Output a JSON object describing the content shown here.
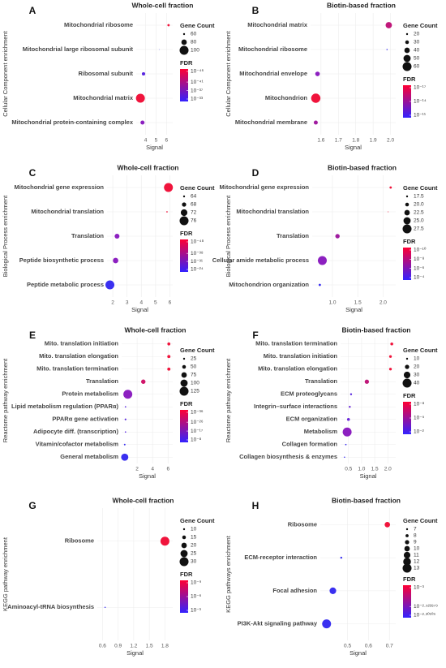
{
  "chart_data": [
    {
      "type": "scatter",
      "panel": "A",
      "title": "Whole-cell fraction",
      "ylabel": "Cellular Component enrichment",
      "xlabel": "Signal",
      "categories": [
        "Mitochondrial ribosome",
        "Mitochondrial large ribosomal subunit",
        "Ribosomal subunit",
        "Mitochondrial matrix",
        "Mitochondrial protein-containing complex"
      ],
      "values": [
        6.2,
        5.3,
        3.8,
        3.5,
        3.7
      ],
      "sizes": [
        62,
        52,
        68,
        100,
        72
      ],
      "colors": [
        "#f0143c",
        "#3a30f0",
        "#5a28e0",
        "#f0143c",
        "#8c20c0"
      ],
      "xlim": [
        3.1,
        6.6
      ],
      "xticks": [
        4,
        5,
        6
      ],
      "size_legend_title": "Gene Count",
      "size_legend": [
        60,
        80,
        100
      ],
      "color_legend_title": "FDR",
      "gradient": [
        "#ff0033",
        "#3322ff"
      ],
      "color_ticks": [
        {
          "value": 1e-46,
          "label": "10⁻⁴⁶"
        },
        {
          "value": 1e-41,
          "label": "10⁻⁴¹"
        },
        {
          "value": 1e-37,
          "label": "10⁻³⁷"
        },
        {
          "value": 1e-33,
          "label": "10⁻³³"
        }
      ]
    },
    {
      "type": "scatter",
      "panel": "B",
      "title": "Biotin-based fraction",
      "ylabel": "Cellular Component enrichment",
      "xlabel": "Signal",
      "categories": [
        "Mitochondrial matrix",
        "Mitochondrial ribosome",
        "Mitochondrial envelope",
        "Mitochondrion",
        "Mitochondrial membrane"
      ],
      "values": [
        1.99,
        1.98,
        1.58,
        1.57,
        1.57
      ],
      "sizes": [
        45,
        16,
        35,
        62,
        32
      ],
      "colors": [
        "#c0187a",
        "#3a30f0",
        "#8c20c0",
        "#f0143c",
        "#a01ca0"
      ],
      "xlim": [
        1.54,
        2.03
      ],
      "xticks": [
        1.6,
        1.7,
        1.8,
        1.9,
        {
          "value": 2,
          "label": "2.0"
        }
      ],
      "size_legend_title": "Gene Count",
      "size_legend": [
        20,
        30,
        40,
        50,
        60
      ],
      "color_legend_title": "FDR",
      "gradient": [
        "#ff0033",
        "#3322ff"
      ],
      "color_ticks": [
        {
          "value": 1e-17,
          "label": "10⁻¹⁷"
        },
        {
          "value": 1e-14,
          "label": "10⁻¹⁴"
        },
        {
          "value": 1e-11,
          "label": "10⁻¹¹"
        }
      ]
    },
    {
      "type": "scatter",
      "panel": "C",
      "title": "Whole-cell fraction",
      "ylabel": "Biological Process enrichment",
      "xlabel": "Signal",
      "categories": [
        "Mitochondrial gene expression",
        "Mitochondrial translation",
        "Translation",
        "Peptide biosynthetic process",
        "Peptide metabolic process"
      ],
      "values": [
        5.9,
        5.8,
        2.3,
        2.2,
        1.8
      ],
      "sizes": [
        76,
        63,
        69,
        70,
        76
      ],
      "colors": [
        "#f0143c",
        "#f0143c",
        "#8c20c0",
        "#8c20c0",
        "#3a30f0"
      ],
      "xlim": [
        1.6,
        6.2
      ],
      "xticks": [
        2,
        3,
        4,
        5,
        6
      ],
      "size_legend_title": "Gene Count",
      "size_legend": [
        64,
        68,
        72,
        76
      ],
      "color_legend_title": "FDR",
      "gradient": [
        "#ff0033",
        "#3322ff"
      ],
      "color_ticks": [
        {
          "value": 1e-48,
          "label": "10⁻⁴⁸"
        },
        {
          "value": 1e-38,
          "label": "10⁻³⁸"
        },
        {
          "value": 1e-31,
          "label": "10⁻³¹"
        },
        {
          "value": 1e-24,
          "label": "10⁻²⁴"
        }
      ]
    },
    {
      "type": "scatter",
      "panel": "D",
      "title": "Biotin-based fraction",
      "ylabel": "Biological Process enrichment",
      "xlabel": "Signal",
      "categories": [
        "Mitochondrial gene expression",
        "Mitochondrial translation",
        "Translation",
        "Cellular amide metabolic process",
        "Mitochondrion organization"
      ],
      "values": [
        2.15,
        2.1,
        1.1,
        0.8,
        0.75
      ],
      "sizes": [
        18,
        16,
        21,
        27.5,
        18
      ],
      "colors": [
        "#f0143c",
        "#f0143c",
        "#a01ca0",
        "#8c20c0",
        "#3a30f0"
      ],
      "xlim": [
        0.6,
        2.25
      ],
      "xticks": [
        {
          "value": 1,
          "label": "1.0"
        },
        1.5,
        {
          "value": 2,
          "label": "2.0"
        }
      ],
      "size_legend_title": "Gene Count",
      "size_legend": [
        17.5,
        {
          "value": 20,
          "label": "20.0"
        },
        22.5,
        {
          "value": 25,
          "label": "25.0"
        },
        27.5
      ],
      "color_legend_title": "FDR",
      "gradient": [
        "#ff0033",
        "#3322ff"
      ],
      "color_ticks": [
        {
          "value": 1e-10,
          "label": "10⁻¹⁰"
        },
        {
          "value": 1e-08,
          "label": "10⁻⁸"
        },
        {
          "value": 1e-06,
          "label": "10⁻⁶"
        },
        {
          "value": 0.0001,
          "label": "10⁻⁴"
        }
      ]
    },
    {
      "type": "scatter",
      "panel": "E",
      "title": "Whole-cell fraction",
      "ylabel": "Reactome pathway enrichment",
      "xlabel": "Signal",
      "categories": [
        "Mito. translation initiation",
        "Mito. translation elongation",
        "Mito. translation termination",
        "Translation",
        "Protein metabolism",
        "Lipid metabolism regulation (PPARα)",
        "PPARα gene activation",
        "Adipocyte diff. (transcription)",
        "Vitamin/cofactor metabolism",
        "General metabolism"
      ],
      "values": [
        6.1,
        6.1,
        6.1,
        2.8,
        0.8,
        0.5,
        0.5,
        0.5,
        0.4,
        0.4
      ],
      "sizes": [
        40,
        42,
        42,
        60,
        125,
        18,
        22,
        16,
        20,
        100
      ],
      "colors": [
        "#f0143c",
        "#f0143c",
        "#f0143c",
        "#d0166a",
        "#8c20c0",
        "#5a28e0",
        "#5a28e0",
        "#5a28e0",
        "#3a30f0",
        "#3a30f0"
      ],
      "xlim": [
        0,
        6.6
      ],
      "xticks": [
        2,
        4,
        6
      ],
      "size_legend_title": "Gene Count",
      "size_legend": [
        25,
        50,
        75,
        100,
        125
      ],
      "color_legend_title": "FDR",
      "gradient": [
        "#ff0033",
        "#3322ff"
      ],
      "color_ticks": [
        {
          "value": 1e-36,
          "label": "10⁻³⁶"
        },
        {
          "value": 1e-26,
          "label": "10⁻²⁶"
        },
        {
          "value": 1e-17,
          "label": "10⁻¹⁷"
        },
        {
          "value": 1e-08,
          "label": "10⁻⁸"
        }
      ]
    },
    {
      "type": "scatter",
      "panel": "F",
      "title": "Biotin-based fraction",
      "ylabel": "Reactome pathway enrichment",
      "xlabel": "Signal",
      "categories": [
        "Mito. translation termination",
        "Mito. translation initiation",
        "Mito. translation elongation",
        "Translation",
        "ECM proteoglycans",
        "Integrin–surface interactions",
        "ECM organization",
        "Metabolism",
        "Collagen formation",
        "Collagen biosynthesis & enzymes"
      ],
      "values": [
        2.15,
        2.1,
        2.1,
        1.2,
        0.6,
        0.55,
        0.5,
        0.45,
        0.4,
        0.35
      ],
      "sizes": [
        14,
        13,
        13,
        20,
        10,
        10,
        14,
        40,
        8,
        7
      ],
      "colors": [
        "#f0143c",
        "#f0143c",
        "#f0143c",
        "#c0187a",
        "#5a28e0",
        "#6a26d8",
        "#6a26d8",
        "#8c20c0",
        "#3a30f0",
        "#3a30f0"
      ],
      "xlim": [
        0.2,
        2.3
      ],
      "xticks": [
        0.5,
        {
          "value": 1,
          "label": "1.0"
        },
        1.5,
        {
          "value": 2,
          "label": "2.0"
        }
      ],
      "size_legend_title": "Gene Count",
      "size_legend": [
        10,
        20,
        30,
        40
      ],
      "color_legend_title": "FDR",
      "gradient": [
        "#ff0033",
        "#3322ff"
      ],
      "color_ticks": [
        {
          "value": 1e-08,
          "label": "10⁻⁸"
        },
        {
          "value": 1e-05,
          "label": "10⁻⁵"
        },
        {
          "value": 0.01,
          "label": "10⁻²"
        }
      ]
    },
    {
      "type": "scatter",
      "panel": "G",
      "title": "Whole-cell fraction",
      "ylabel": "KEGG pathway enrichment",
      "xlabel": "Signal",
      "categories": [
        "Ribosome",
        "Aminoacyl-tRNA biosynthesis"
      ],
      "values": [
        1.8,
        0.65
      ],
      "sizes": [
        30,
        8
      ],
      "colors": [
        "#f0143c",
        "#3a30f0"
      ],
      "xlim": [
        0.5,
        1.95
      ],
      "xticks": [
        0.6,
        0.9,
        1.2,
        1.5,
        1.8
      ],
      "size_legend_title": "Gene Count",
      "size_legend": [
        10,
        15,
        20,
        25,
        30
      ],
      "color_legend_title": "FDR",
      "gradient": [
        "#ff0033",
        "#3322ff"
      ],
      "color_ticks": [
        {
          "value": 1e-09,
          "label": "10⁻⁹"
        },
        {
          "value": 1e-06,
          "label": "10⁻⁶"
        },
        {
          "value": 0.001,
          "label": "10⁻³"
        }
      ]
    },
    {
      "type": "scatter",
      "panel": "H",
      "title": "Biotin-based fraction",
      "ylabel": "KEGG pathways enrichment",
      "xlabel": "Signal",
      "categories": [
        "Ribosome",
        "ECM-receptor interaction",
        "Focal adhesion",
        "PI3K-Akt signaling pathway"
      ],
      "values": [
        0.69,
        0.47,
        0.43,
        0.4
      ],
      "sizes": [
        10,
        7,
        11,
        13
      ],
      "colors": [
        "#f0143c",
        "#3a30f0",
        "#3a30f0",
        "#3a30f0"
      ],
      "xlim": [
        0.37,
        0.73
      ],
      "xticks": [
        0.5,
        0.6,
        0.7
      ],
      "size_legend_title": "Gene Count",
      "size_legend": [
        7,
        8,
        9,
        10,
        11,
        12,
        13
      ],
      "color_legend_title": "FDR",
      "gradient": [
        "#ff0033",
        "#3322ff"
      ],
      "color_ticks": [
        {
          "value": 0.001,
          "label": "10⁻³"
        },
        {
          "value": 0.003,
          "label": "10⁻²·⁵²²⁸⁷⁹"
        },
        {
          "value": 0.005,
          "label": "10⁻²·³⁰¹⁰³"
        }
      ]
    }
  ]
}
